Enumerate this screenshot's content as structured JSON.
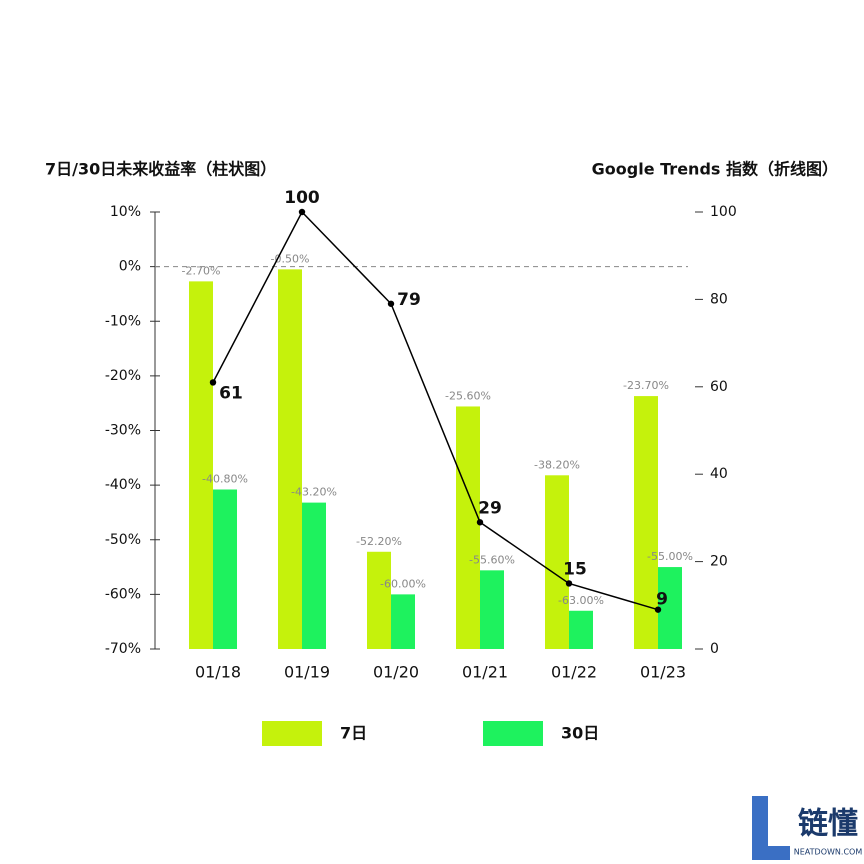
{
  "chart_data": {
    "type": "bar",
    "title": "7日/30日未来收益率（柱状图）",
    "y2_title": "Google Trends 指数（折线图）",
    "categories": [
      "01/18",
      "01/19",
      "01/20",
      "01/21",
      "01/22",
      "01/23"
    ],
    "series": [
      {
        "name": "7日",
        "color": "#c5f20c",
        "values": [
          -2.7,
          -0.5,
          -52.2,
          -25.6,
          -38.2,
          -23.7
        ],
        "value_labels": [
          "-2.70%",
          "-0.50%",
          "-52.20%",
          "-25.60%",
          "-38.20%",
          "-23.70%"
        ]
      },
      {
        "name": "30日",
        "color": "#1ef25e",
        "values": [
          -40.8,
          -43.2,
          -60.0,
          -55.6,
          -63.0,
          -55.0
        ],
        "value_labels": [
          "-40.80%",
          "-43.20%",
          "-60.00%",
          "-55.60%",
          "-63.00%",
          "-55.00%"
        ]
      },
      {
        "type": "line",
        "axis": "y2",
        "color": "#000000",
        "values": [
          61,
          100,
          79,
          29,
          15,
          9
        ]
      }
    ],
    "ylim": [
      -70,
      10
    ],
    "yticks": [
      {
        "value": 10,
        "label": "10%"
      },
      {
        "value": 0,
        "label": "0%"
      },
      {
        "value": -10,
        "label": "-10%"
      },
      {
        "value": -20,
        "label": "-20%"
      },
      {
        "value": -30,
        "label": "-30%"
      },
      {
        "value": -40,
        "label": "-40%"
      },
      {
        "value": -50,
        "label": "-50%"
      },
      {
        "value": -60,
        "label": "-60%"
      },
      {
        "value": -70,
        "label": "-70%"
      }
    ],
    "y2lim": [
      0,
      100
    ],
    "y2ticks": [
      0,
      20,
      40,
      60,
      80,
      100
    ],
    "reference_line": 0,
    "legend": "bottom"
  },
  "watermark": {
    "title": "链懂",
    "subtitle": "NEATDOWN.COM"
  }
}
